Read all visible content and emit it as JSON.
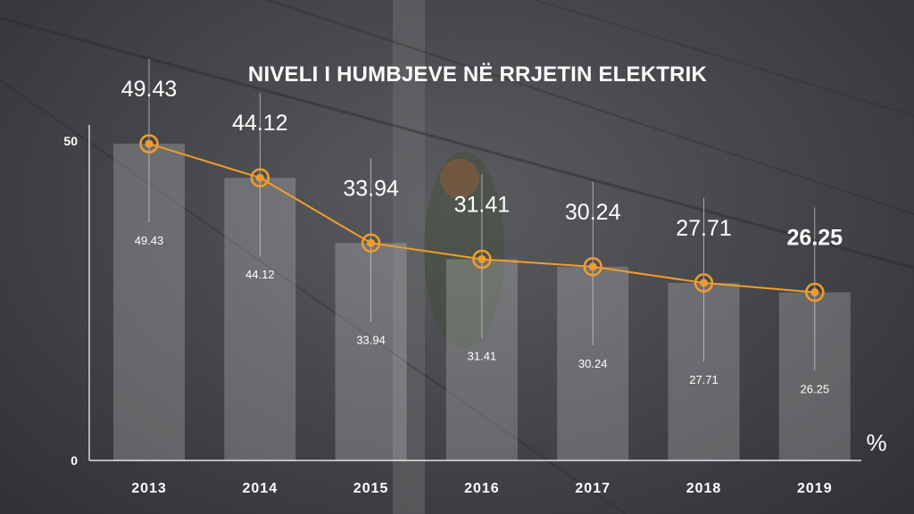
{
  "chart_data": {
    "type": "bar",
    "title": "NIVELI I HUMBJEVE NË RRJETIN ELEKTRIK",
    "categories": [
      "2013",
      "2014",
      "2015",
      "2016",
      "2017",
      "2018",
      "2019"
    ],
    "values": [
      49.43,
      44.12,
      33.94,
      31.41,
      30.24,
      27.71,
      26.25
    ],
    "value_labels": [
      "49.43",
      "44.12",
      "33.94",
      "31.41",
      "30.24",
      "27.71",
      "26.25"
    ],
    "overlay": "line",
    "ylim": [
      0,
      50
    ],
    "yticks": [
      "0",
      "50"
    ],
    "unit_label": "%",
    "grid": false,
    "highlighted_category": "2019",
    "colors": {
      "bar": "#d9d9d9",
      "line": "#f39c2b",
      "text": "#ffffff"
    }
  }
}
